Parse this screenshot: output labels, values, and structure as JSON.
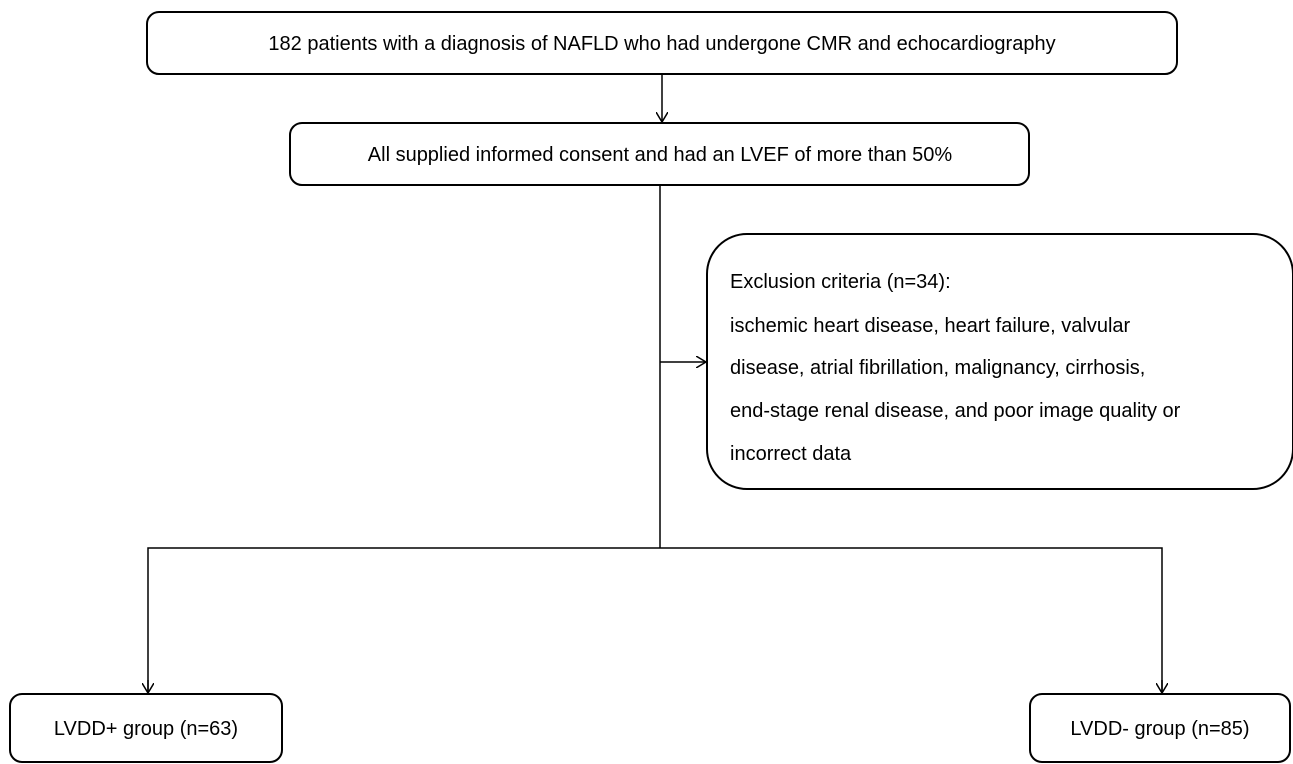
{
  "nodes": [
    {
      "label": "182 patients with a diagnosis of NAFLD who had undergone CMR and echocardiography"
    },
    {
      "label": "All supplied informed consent and had an LVEF of more than 50%"
    },
    {
      "title": "Exclusion criteria (n=34):",
      "lines": [
        "ischemic heart disease, heart failure, valvular",
        "disease, atrial fibrillation, malignancy, cirrhosis,",
        "end-stage renal disease, and poor image quality or",
        "incorrect data"
      ]
    },
    {
      "label": "LVDD+ group (n=63)"
    },
    {
      "label": "LVDD- group (n=85)"
    }
  ]
}
